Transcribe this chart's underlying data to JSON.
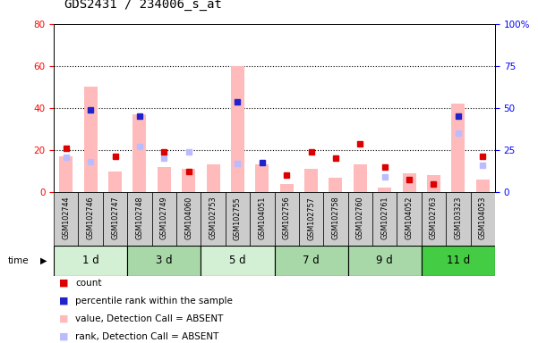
{
  "title": "GDS2431 / 234006_s_at",
  "samples": [
    "GSM102744",
    "GSM102746",
    "GSM102747",
    "GSM102748",
    "GSM102749",
    "GSM104060",
    "GSM102753",
    "GSM102755",
    "GSM104051",
    "GSM102756",
    "GSM102757",
    "GSM102758",
    "GSM102760",
    "GSM102761",
    "GSM104052",
    "GSM102763",
    "GSM103323",
    "GSM104053"
  ],
  "groups": [
    {
      "label": "1 d",
      "color": "#d4f0d4",
      "indices": [
        0,
        1,
        2
      ]
    },
    {
      "label": "3 d",
      "color": "#a8d8a8",
      "indices": [
        3,
        4,
        5
      ]
    },
    {
      "label": "5 d",
      "color": "#d4f0d4",
      "indices": [
        6,
        7,
        8
      ]
    },
    {
      "label": "7 d",
      "color": "#a8d8a8",
      "indices": [
        9,
        10,
        11
      ]
    },
    {
      "label": "9 d",
      "color": "#a8d8a8",
      "indices": [
        12,
        13,
        14
      ]
    },
    {
      "label": "11 d",
      "color": "#44cc44",
      "indices": [
        15,
        16,
        17
      ]
    }
  ],
  "value_absent": [
    17,
    50,
    10,
    37,
    12,
    11,
    13,
    60,
    13,
    4,
    11,
    7,
    13,
    2,
    9,
    8,
    42,
    6
  ],
  "rank_absent": [
    21,
    18,
    0,
    27,
    20,
    24,
    0,
    17,
    0,
    0,
    0,
    0,
    0,
    9,
    7,
    0,
    35,
    16
  ],
  "count": [
    21,
    39,
    17,
    36,
    19,
    10,
    0,
    43,
    14,
    8,
    19,
    16,
    23,
    12,
    6,
    4,
    36,
    17
  ],
  "count_is_present": [
    false,
    true,
    false,
    true,
    false,
    false,
    false,
    true,
    true,
    false,
    false,
    false,
    false,
    false,
    false,
    false,
    true,
    false
  ],
  "ylim_left": [
    0,
    80
  ],
  "ylim_right": [
    0,
    100
  ],
  "yticks_left": [
    0,
    20,
    40,
    60,
    80
  ],
  "yticks_right": [
    0,
    25,
    50,
    75,
    100
  ],
  "bar_color_absent": "#ffbbbb",
  "rank_color_absent": "#bbbbff",
  "count_color_red": "#dd0000",
  "count_color_blue": "#2222cc",
  "plot_bg": "#ffffff",
  "sample_box_color": "#cccccc",
  "legend_items": [
    {
      "color": "#dd0000",
      "label": "count"
    },
    {
      "color": "#2222cc",
      "label": "percentile rank within the sample"
    },
    {
      "color": "#ffbbbb",
      "label": "value, Detection Call = ABSENT"
    },
    {
      "color": "#bbbbff",
      "label": "rank, Detection Call = ABSENT"
    }
  ]
}
